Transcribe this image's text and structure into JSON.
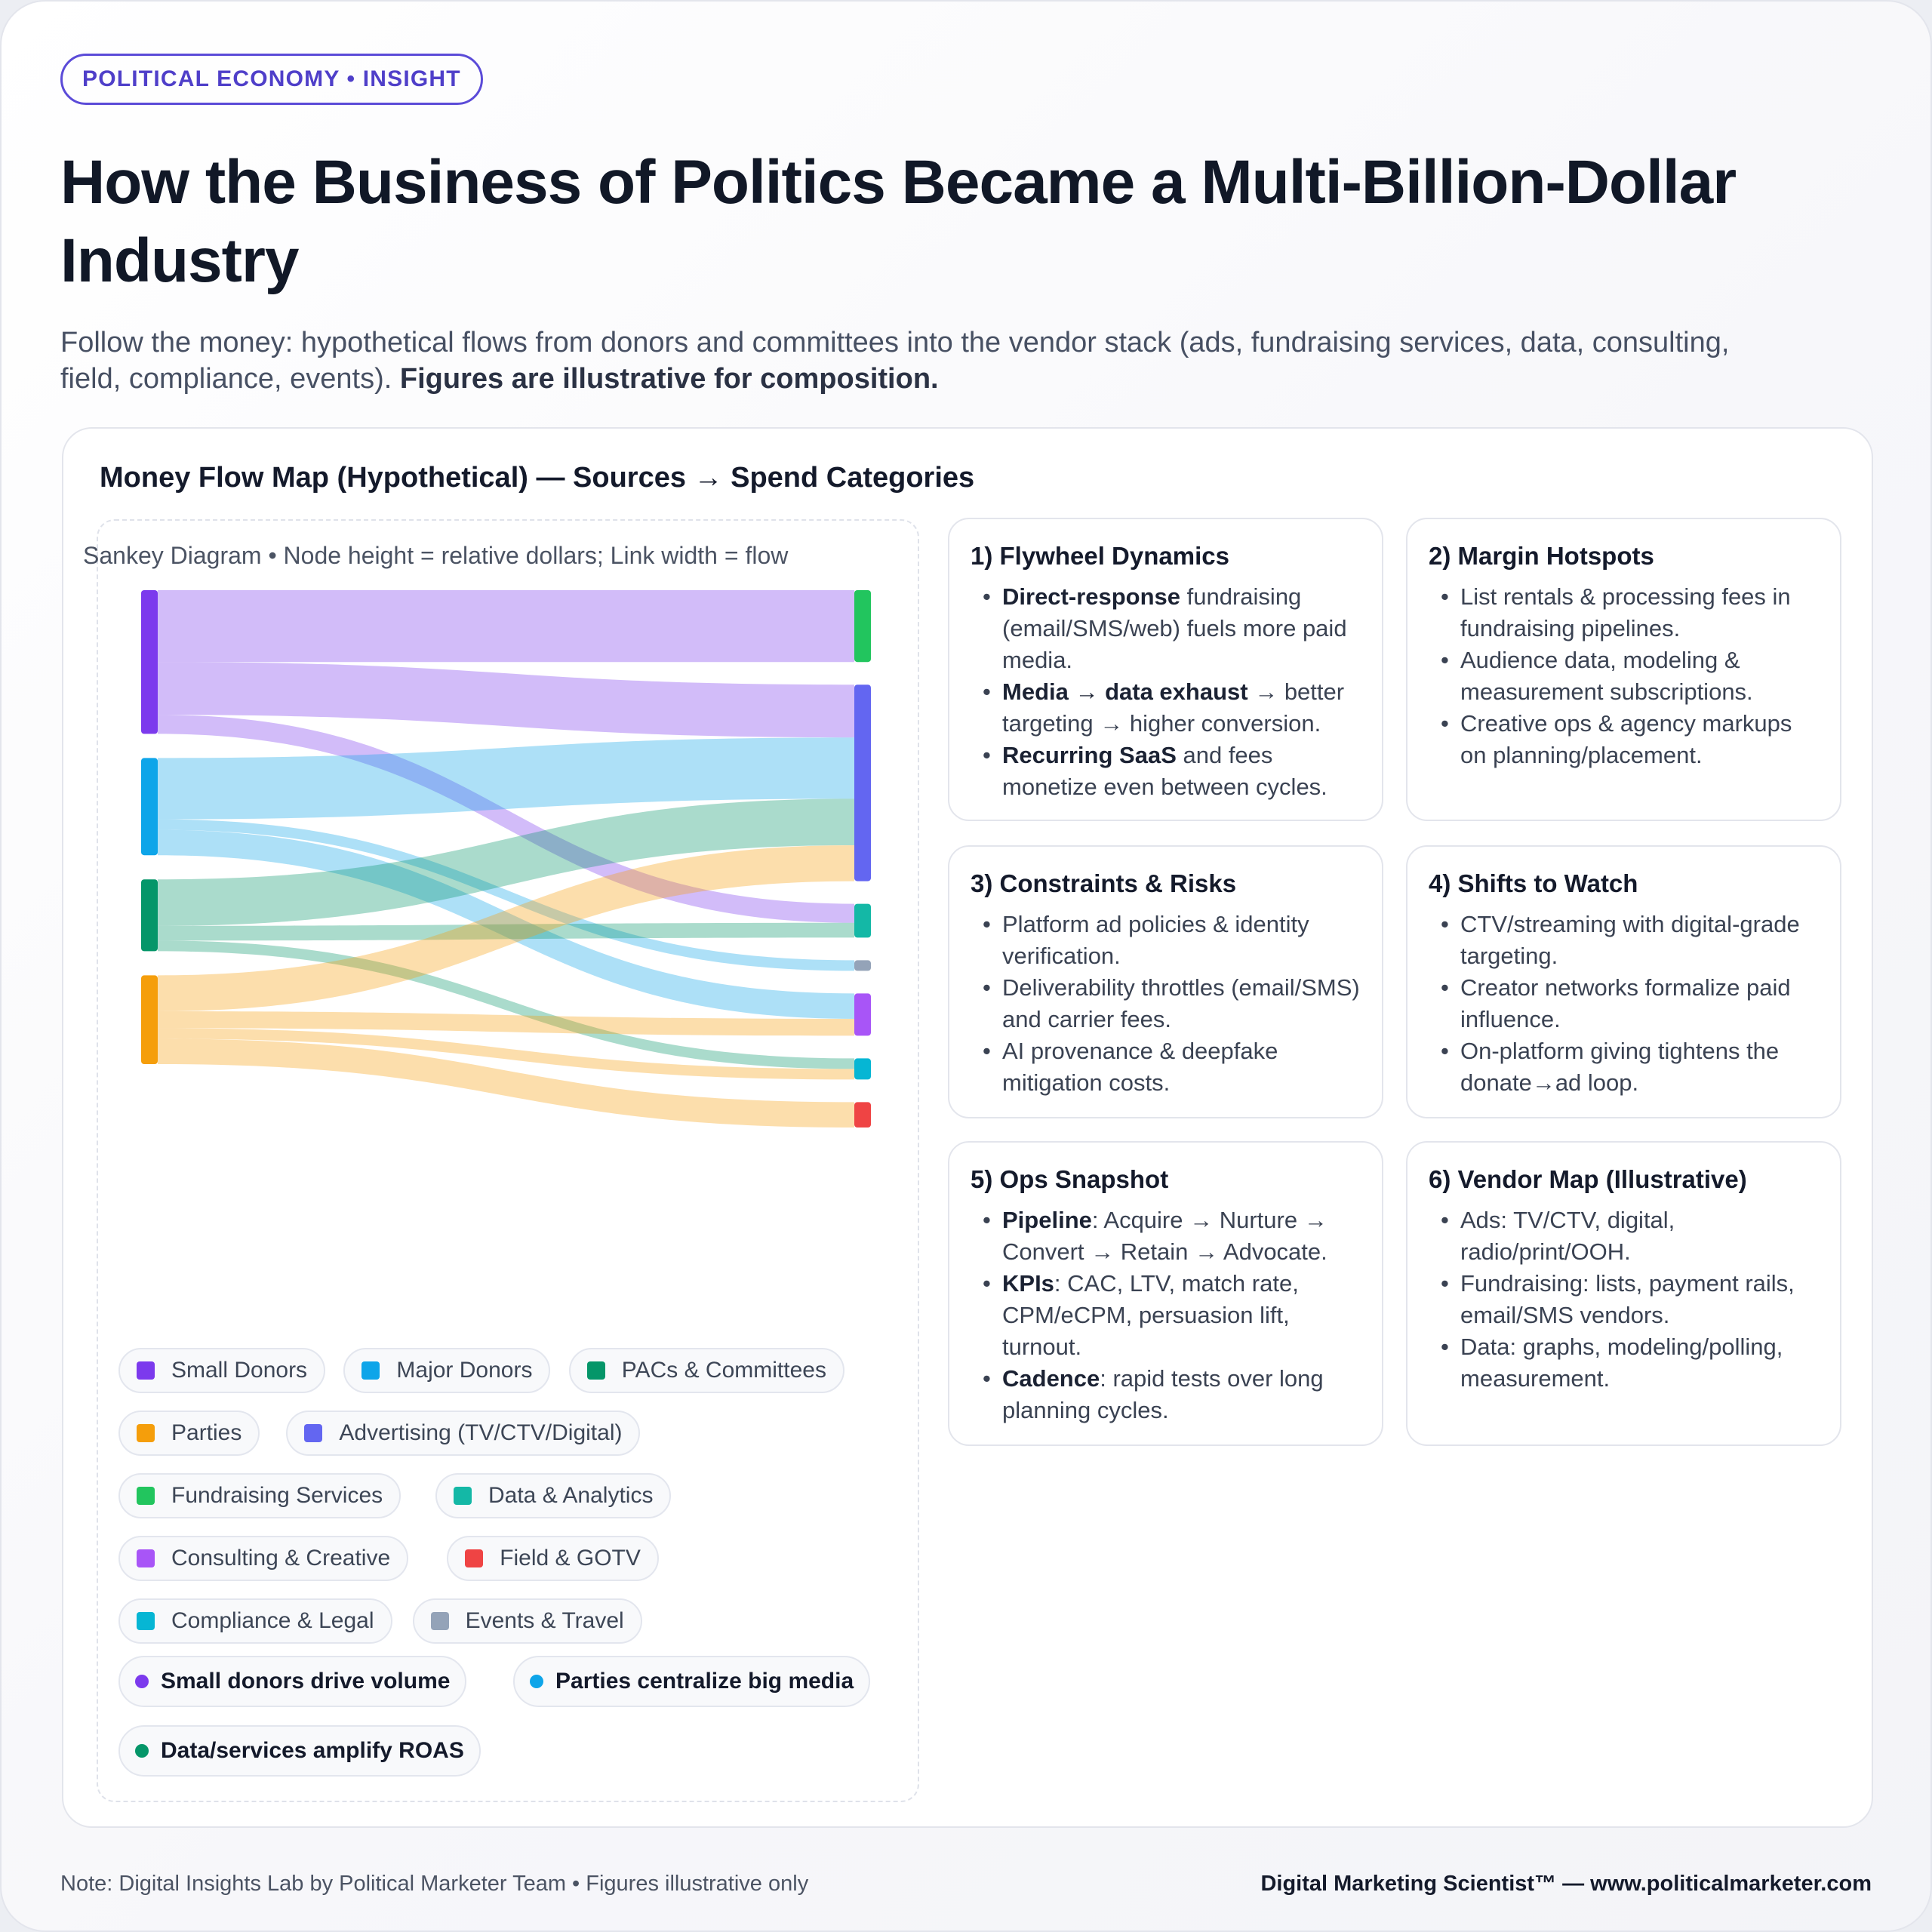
{
  "header": {
    "badge": "POLITICAL ECONOMY • INSIGHT",
    "title": "How the Business of Politics Became a Multi-Billion-Dollar Industry",
    "subtitle_plain": "Follow the money: hypothetical flows from donors and committees into the vendor stack (ads, fundraising services, data, consulting, field, compliance, events).",
    "subtitle_bold": "Figures are illustrative for composition."
  },
  "panel": {
    "title": "Money Flow Map (Hypothetical) — Sources → Spend Categories",
    "sankey_caption": "Sankey Diagram • Node height = relative dollars; Link width = flow"
  },
  "chart_data": {
    "type": "sankey",
    "sources": [
      {
        "name": "Small Donors",
        "color": "#7c3aed"
      },
      {
        "name": "Major Donors",
        "color": "#0ea5e9"
      },
      {
        "name": "PACs & Committees",
        "color": "#059669"
      },
      {
        "name": "Parties",
        "color": "#f59e0b"
      }
    ],
    "targets": [
      {
        "name": "Fundraising Services",
        "color": "#22c55e"
      },
      {
        "name": "Advertising (TV/CTV/Digital)",
        "color": "#6366f1"
      },
      {
        "name": "Data & Analytics",
        "color": "#14b8a6"
      },
      {
        "name": "Events & Travel",
        "color": "#94a3b8"
      },
      {
        "name": "Consulting & Creative",
        "color": "#a855f7"
      },
      {
        "name": "Compliance & Legal",
        "color": "#06b6d4"
      },
      {
        "name": "Field & GOTV",
        "color": "#ef4444"
      }
    ],
    "links": [
      {
        "source": "Small Donors",
        "target": "Fundraising Services",
        "value": 34
      },
      {
        "source": "Small Donors",
        "target": "Advertising (TV/CTV/Digital)",
        "value": 25
      },
      {
        "source": "Small Donors",
        "target": "Data & Analytics",
        "value": 9
      },
      {
        "source": "Major Donors",
        "target": "Advertising (TV/CTV/Digital)",
        "value": 29
      },
      {
        "source": "Major Donors",
        "target": "Events & Travel",
        "value": 5
      },
      {
        "source": "Major Donors",
        "target": "Consulting & Creative",
        "value": 12
      },
      {
        "source": "PACs & Committees",
        "target": "Advertising (TV/CTV/Digital)",
        "value": 22
      },
      {
        "source": "PACs & Committees",
        "target": "Data & Analytics",
        "value": 7
      },
      {
        "source": "PACs & Committees",
        "target": "Compliance & Legal",
        "value": 5
      },
      {
        "source": "Parties",
        "target": "Advertising (TV/CTV/Digital)",
        "value": 17
      },
      {
        "source": "Parties",
        "target": "Consulting & Creative",
        "value": 8
      },
      {
        "source": "Parties",
        "target": "Compliance & Legal",
        "value": 5
      },
      {
        "source": "Parties",
        "target": "Field & GOTV",
        "value": 12
      }
    ]
  },
  "legend": [
    {
      "label": "Small Donors",
      "color": "#7c3aed"
    },
    {
      "label": "Major Donors",
      "color": "#0ea5e9"
    },
    {
      "label": "PACs & Committees",
      "color": "#059669"
    },
    {
      "label": "Parties",
      "color": "#f59e0b"
    },
    {
      "label": "Advertising (TV/CTV/Digital)",
      "color": "#6366f1"
    },
    {
      "label": "Fundraising Services",
      "color": "#22c55e"
    },
    {
      "label": "Data & Analytics",
      "color": "#14b8a6"
    },
    {
      "label": "Consulting & Creative",
      "color": "#a855f7"
    },
    {
      "label": "Field & GOTV",
      "color": "#ef4444"
    },
    {
      "label": "Compliance & Legal",
      "color": "#06b6d4"
    },
    {
      "label": "Events & Travel",
      "color": "#94a3b8"
    }
  ],
  "notes": [
    {
      "label": "Small donors drive volume",
      "color": "#7c3aed"
    },
    {
      "label": "Parties centralize big media",
      "color": "#0ea5e9"
    },
    {
      "label": "Data/services amplify ROAS",
      "color": "#059669"
    }
  ],
  "cards": [
    {
      "title": "1) Flywheel Dynamics",
      "items": [
        {
          "bold": "Direct-response",
          "text": " fundraising (email/SMS/web) fuels more paid media."
        },
        {
          "bold": "Media → data exhaust",
          "text": " → better targeting → higher conversion."
        },
        {
          "bold": "Recurring SaaS",
          "text": " and fees monetize even between cycles."
        }
      ]
    },
    {
      "title": "2) Margin Hotspots",
      "items": [
        {
          "bold": "",
          "text": "List rentals & processing fees in fundraising pipelines."
        },
        {
          "bold": "",
          "text": "Audience data, modeling & measurement subscriptions."
        },
        {
          "bold": "",
          "text": "Creative ops & agency markups on planning/placement."
        }
      ]
    },
    {
      "title": "3) Constraints & Risks",
      "items": [
        {
          "bold": "",
          "text": "Platform ad policies & identity verification."
        },
        {
          "bold": "",
          "text": "Deliverability throttles (email/SMS) and carrier fees."
        },
        {
          "bold": "",
          "text": "AI provenance & deepfake mitigation costs."
        }
      ]
    },
    {
      "title": "4) Shifts to Watch",
      "items": [
        {
          "bold": "",
          "text": "CTV/streaming with digital-grade targeting."
        },
        {
          "bold": "",
          "text": "Creator networks formalize paid influence."
        },
        {
          "bold": "",
          "text": "On-platform giving tightens the donate→ad loop."
        }
      ]
    },
    {
      "title": "5) Ops Snapshot",
      "items": [
        {
          "bold": "Pipeline",
          "text": ": Acquire → Nurture → Convert → Retain → Advocate."
        },
        {
          "bold": "KPIs",
          "text": ": CAC, LTV, match rate, CPM/eCPM, persuasion lift, turnout."
        },
        {
          "bold": "Cadence",
          "text": ": rapid tests over long planning cycles."
        }
      ]
    },
    {
      "title": "6) Vendor Map (Illustrative)",
      "items": [
        {
          "bold": "",
          "text": "Ads: TV/CTV, digital, radio/print/OOH."
        },
        {
          "bold": "",
          "text": "Fundraising: lists, payment rails, email/SMS vendors."
        },
        {
          "bold": "",
          "text": "Data: graphs, modeling/polling, measurement."
        }
      ]
    }
  ],
  "footer": {
    "note": "Note: Digital Insights Lab by Political Marketer Team • Figures illustrative only",
    "brand": "Digital Marketing Scientist™ — www.politicalmarketer.com"
  }
}
